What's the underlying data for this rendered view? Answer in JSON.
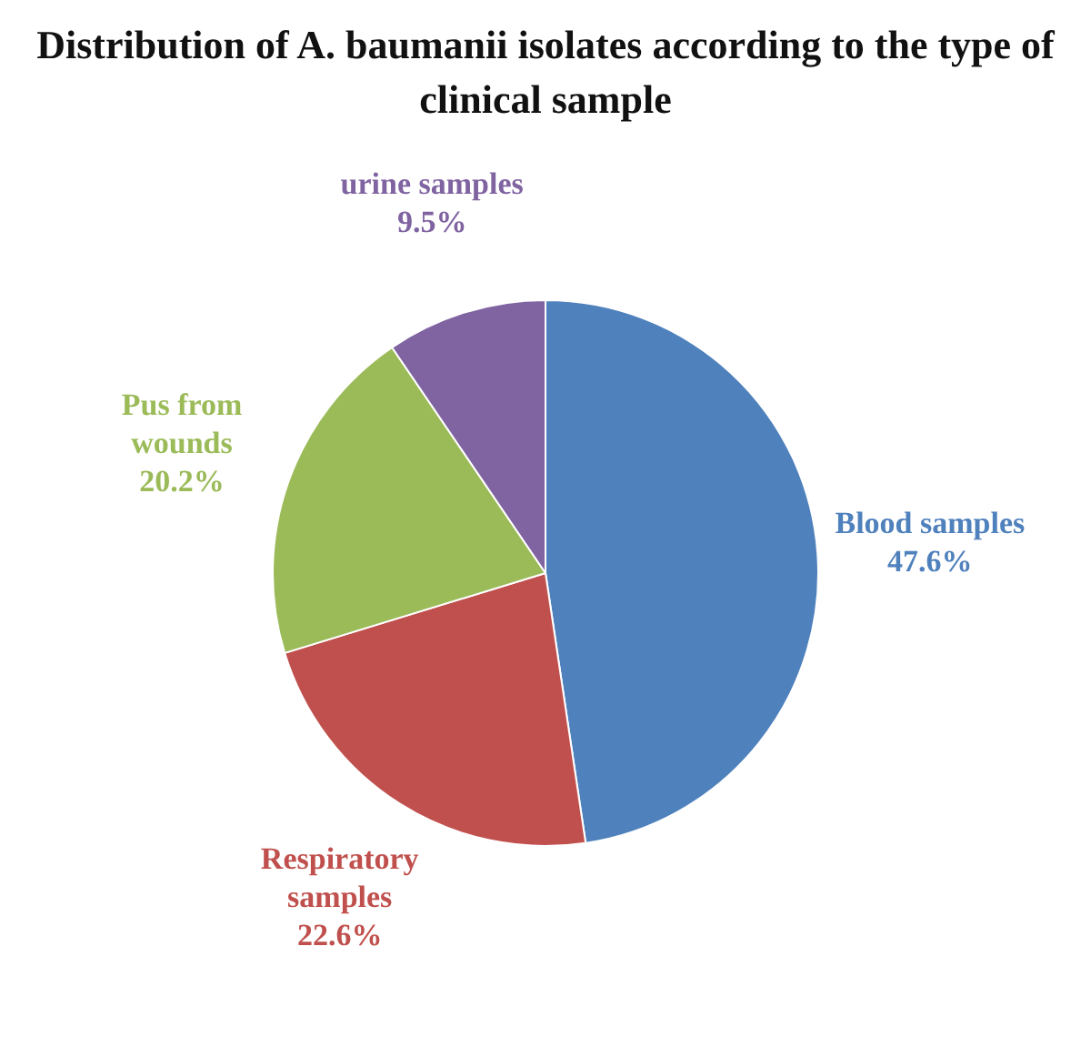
{
  "chart_data": {
    "type": "pie",
    "title": "Distribution of A. baumanii isolates according to the type of clinical sample",
    "categories": [
      "Blood samples",
      "Respiratory samples",
      "Pus from wounds",
      "urine samples"
    ],
    "values": [
      47.6,
      22.6,
      20.2,
      9.5
    ],
    "value_labels": [
      "47.6%",
      "22.6%",
      "20.2%",
      "9.5%"
    ],
    "colors": [
      "#4f81bd",
      "#c0504d",
      "#9bbb59",
      "#8064a2"
    ],
    "legend": false
  }
}
